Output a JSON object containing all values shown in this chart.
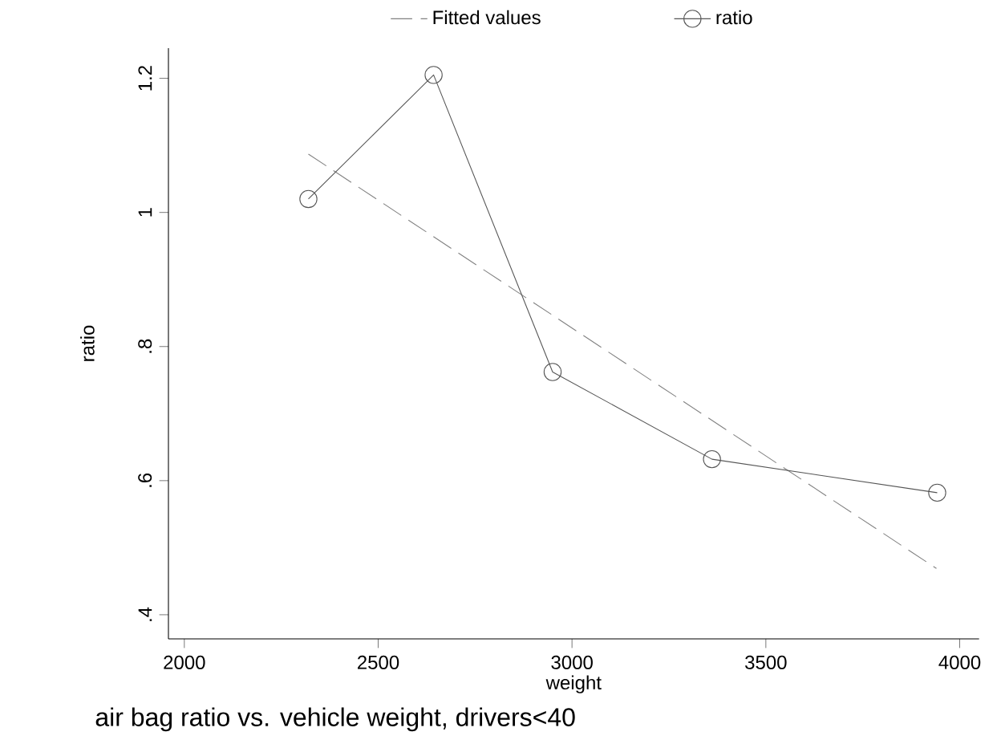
{
  "chart_data": {
    "type": "line",
    "title": "air bag ratio vs. vehicle weight, drivers<40",
    "xlabel": "weight",
    "ylabel": "ratio",
    "series": [
      {
        "name": "Fitted values",
        "color": "#808080",
        "line_style": "dashed",
        "marker": "none",
        "x": [
          2320,
          3940
        ],
        "values": [
          1.087,
          0.469
        ]
      },
      {
        "name": "ratio",
        "color": "#555555",
        "line_style": "solid",
        "marker": "circle",
        "x": [
          2320,
          2643,
          2950,
          3361,
          3942
        ],
        "values": [
          1.02,
          1.205,
          0.762,
          0.632,
          0.582
        ]
      }
    ],
    "xlim": [
      1959,
      4050
    ],
    "ylim": [
      0.364,
      1.245
    ],
    "xticks": [
      2000,
      2500,
      3000,
      3500,
      4000
    ],
    "yticks": [
      {
        "value": 0.4,
        "label": ".4"
      },
      {
        "value": 0.6,
        "label": ".6"
      },
      {
        "value": 0.8,
        "label": ".8"
      },
      {
        "value": 1,
        "label": "1"
      },
      {
        "value": 1.2,
        "label": "1.2"
      }
    ],
    "grid": false,
    "legend": "top"
  }
}
